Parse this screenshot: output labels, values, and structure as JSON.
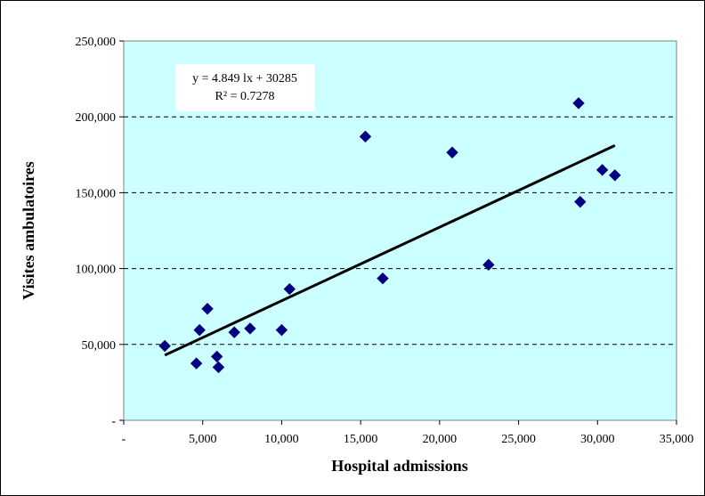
{
  "chart_data": {
    "type": "scatter",
    "xlabel": "Hospital admissions",
    "ylabel": "Visites ambulatoires",
    "xlim": [
      0,
      35000
    ],
    "ylim": [
      0,
      250000
    ],
    "x_ticks": [
      "-",
      "5,000",
      "10,000",
      "15,000",
      "20,000",
      "25,000",
      "30,000",
      "35,000"
    ],
    "y_ticks": [
      "-",
      "50,000",
      "100,000",
      "150,000",
      "200,000",
      "250,000"
    ],
    "grid": "horizontal dashed",
    "plot_background": "#ccffff",
    "marker_color": "#000080",
    "trendline_color": "#000000",
    "trendline": {
      "slope": 4.8491,
      "intercept": 30285,
      "x_range": [
        2600,
        31100
      ]
    },
    "equation_line1": "y = 4.849 lx + 30285",
    "equation_line2": "R² = 0.7278",
    "points": [
      {
        "x": 2600,
        "y": 49000
      },
      {
        "x": 4600,
        "y": 37500
      },
      {
        "x": 4800,
        "y": 59500
      },
      {
        "x": 5300,
        "y": 73500
      },
      {
        "x": 5900,
        "y": 42000
      },
      {
        "x": 6000,
        "y": 35000
      },
      {
        "x": 7000,
        "y": 58000
      },
      {
        "x": 8000,
        "y": 60500
      },
      {
        "x": 10000,
        "y": 59500
      },
      {
        "x": 10500,
        "y": 86500
      },
      {
        "x": 15300,
        "y": 187000
      },
      {
        "x": 16400,
        "y": 93500
      },
      {
        "x": 20800,
        "y": 176500
      },
      {
        "x": 23100,
        "y": 102500
      },
      {
        "x": 28800,
        "y": 209000
      },
      {
        "x": 28900,
        "y": 144000
      },
      {
        "x": 30300,
        "y": 165000
      },
      {
        "x": 31100,
        "y": 161500
      }
    ]
  }
}
